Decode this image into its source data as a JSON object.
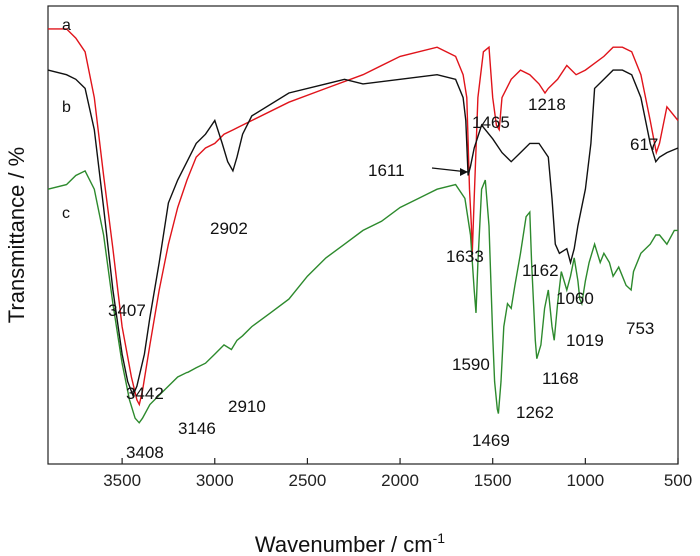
{
  "chart_data": {
    "type": "line",
    "xlabel": "Wavenumber / cm",
    "xlabel_sup": "-1",
    "ylabel": "Transmittance / %",
    "xlim": [
      3900,
      500
    ],
    "x_reversed": true,
    "x_ticks": [
      3500,
      3000,
      2500,
      2000,
      1500,
      1000,
      500
    ],
    "y_ticks_shown": false,
    "grid": false,
    "series": [
      {
        "name": "a",
        "color": "#e0141b",
        "points": [
          [
            3900,
            95
          ],
          [
            3800,
            95
          ],
          [
            3750,
            93
          ],
          [
            3700,
            90
          ],
          [
            3650,
            80
          ],
          [
            3600,
            63
          ],
          [
            3550,
            47
          ],
          [
            3500,
            30
          ],
          [
            3450,
            19
          ],
          [
            3420,
            14
          ],
          [
            3407,
            13
          ],
          [
            3390,
            16
          ],
          [
            3350,
            26
          ],
          [
            3300,
            38
          ],
          [
            3250,
            48
          ],
          [
            3200,
            56
          ],
          [
            3150,
            62
          ],
          [
            3100,
            67
          ],
          [
            3050,
            69
          ],
          [
            3000,
            70
          ],
          [
            2950,
            72
          ],
          [
            2900,
            73
          ],
          [
            2800,
            75
          ],
          [
            2600,
            79
          ],
          [
            2400,
            82
          ],
          [
            2200,
            85
          ],
          [
            2000,
            89
          ],
          [
            1800,
            91
          ],
          [
            1700,
            89
          ],
          [
            1660,
            85
          ],
          [
            1640,
            80
          ],
          [
            1625,
            60
          ],
          [
            1615,
            52
          ],
          [
            1611,
            45
          ],
          [
            1600,
            58
          ],
          [
            1580,
            80
          ],
          [
            1550,
            90
          ],
          [
            1520,
            91
          ],
          [
            1500,
            80
          ],
          [
            1480,
            74
          ],
          [
            1465,
            73
          ],
          [
            1450,
            80
          ],
          [
            1400,
            84
          ],
          [
            1350,
            86
          ],
          [
            1300,
            85
          ],
          [
            1250,
            83
          ],
          [
            1218,
            81
          ],
          [
            1200,
            82
          ],
          [
            1150,
            84
          ],
          [
            1100,
            87
          ],
          [
            1050,
            85
          ],
          [
            1000,
            86
          ],
          [
            900,
            89
          ],
          [
            850,
            91
          ],
          [
            800,
            91
          ],
          [
            750,
            90
          ],
          [
            700,
            85
          ],
          [
            650,
            75
          ],
          [
            617,
            68
          ],
          [
            600,
            70
          ],
          [
            560,
            78
          ],
          [
            500,
            75
          ]
        ]
      },
      {
        "name": "b",
        "color": "#111111",
        "points": [
          [
            3900,
            86
          ],
          [
            3800,
            85
          ],
          [
            3750,
            84
          ],
          [
            3700,
            82
          ],
          [
            3650,
            73
          ],
          [
            3600,
            56
          ],
          [
            3550,
            38
          ],
          [
            3500,
            24
          ],
          [
            3470,
            18
          ],
          [
            3442,
            15
          ],
          [
            3420,
            17
          ],
          [
            3380,
            24
          ],
          [
            3350,
            32
          ],
          [
            3300,
            44
          ],
          [
            3250,
            57
          ],
          [
            3200,
            62
          ],
          [
            3150,
            66
          ],
          [
            3100,
            70
          ],
          [
            3050,
            72
          ],
          [
            3000,
            75
          ],
          [
            2960,
            70
          ],
          [
            2930,
            66
          ],
          [
            2902,
            64
          ],
          [
            2880,
            67
          ],
          [
            2850,
            72
          ],
          [
            2800,
            76
          ],
          [
            2600,
            81
          ],
          [
            2400,
            83
          ],
          [
            2300,
            84
          ],
          [
            2200,
            83
          ],
          [
            2000,
            84
          ],
          [
            1800,
            85
          ],
          [
            1700,
            84
          ],
          [
            1660,
            80
          ],
          [
            1645,
            75
          ],
          [
            1633,
            63
          ],
          [
            1620,
            65
          ],
          [
            1600,
            69
          ],
          [
            1560,
            74
          ],
          [
            1500,
            71
          ],
          [
            1450,
            68
          ],
          [
            1400,
            66
          ],
          [
            1350,
            68
          ],
          [
            1300,
            70
          ],
          [
            1250,
            70
          ],
          [
            1200,
            67
          ],
          [
            1180,
            58
          ],
          [
            1162,
            48
          ],
          [
            1140,
            46
          ],
          [
            1100,
            47
          ],
          [
            1080,
            44
          ],
          [
            1060,
            47
          ],
          [
            1040,
            52
          ],
          [
            1000,
            60
          ],
          [
            970,
            70
          ],
          [
            950,
            82
          ],
          [
            900,
            84
          ],
          [
            850,
            86
          ],
          [
            800,
            86
          ],
          [
            750,
            85
          ],
          [
            700,
            80
          ],
          [
            650,
            70
          ],
          [
            620,
            66
          ],
          [
            600,
            67
          ],
          [
            560,
            68
          ],
          [
            500,
            69
          ]
        ]
      },
      {
        "name": "c",
        "color": "#2d8a2d",
        "points": [
          [
            3900,
            60
          ],
          [
            3800,
            61
          ],
          [
            3750,
            63
          ],
          [
            3700,
            64
          ],
          [
            3650,
            60
          ],
          [
            3600,
            50
          ],
          [
            3550,
            35
          ],
          [
            3500,
            22
          ],
          [
            3460,
            14
          ],
          [
            3430,
            10
          ],
          [
            3408,
            9
          ],
          [
            3390,
            10
          ],
          [
            3350,
            13
          ],
          [
            3300,
            15
          ],
          [
            3250,
            17
          ],
          [
            3200,
            19
          ],
          [
            3150,
            20
          ],
          [
            3146,
            20
          ],
          [
            3100,
            21
          ],
          [
            3050,
            22
          ],
          [
            3000,
            24
          ],
          [
            2950,
            26
          ],
          [
            2910,
            25
          ],
          [
            2880,
            27
          ],
          [
            2850,
            28
          ],
          [
            2800,
            30
          ],
          [
            2700,
            33
          ],
          [
            2600,
            36
          ],
          [
            2500,
            41
          ],
          [
            2400,
            45
          ],
          [
            2300,
            48
          ],
          [
            2200,
            51
          ],
          [
            2100,
            53
          ],
          [
            2000,
            56
          ],
          [
            1900,
            58
          ],
          [
            1850,
            59
          ],
          [
            1800,
            60
          ],
          [
            1700,
            61
          ],
          [
            1650,
            58
          ],
          [
            1620,
            50
          ],
          [
            1600,
            38
          ],
          [
            1590,
            33
          ],
          [
            1580,
            44
          ],
          [
            1560,
            60
          ],
          [
            1540,
            62
          ],
          [
            1520,
            52
          ],
          [
            1500,
            28
          ],
          [
            1490,
            18
          ],
          [
            1475,
            12
          ],
          [
            1469,
            11
          ],
          [
            1455,
            18
          ],
          [
            1440,
            30
          ],
          [
            1420,
            35
          ],
          [
            1400,
            34
          ],
          [
            1380,
            39
          ],
          [
            1350,
            46
          ],
          [
            1320,
            54
          ],
          [
            1300,
            55
          ],
          [
            1290,
            44
          ],
          [
            1270,
            27
          ],
          [
            1262,
            23
          ],
          [
            1240,
            26
          ],
          [
            1220,
            34
          ],
          [
            1200,
            38
          ],
          [
            1180,
            30
          ],
          [
            1168,
            27
          ],
          [
            1150,
            35
          ],
          [
            1130,
            42
          ],
          [
            1100,
            38
          ],
          [
            1080,
            41
          ],
          [
            1060,
            45
          ],
          [
            1040,
            40
          ],
          [
            1030,
            36
          ],
          [
            1019,
            35
          ],
          [
            1000,
            40
          ],
          [
            980,
            44
          ],
          [
            950,
            48
          ],
          [
            920,
            44
          ],
          [
            900,
            46
          ],
          [
            870,
            44
          ],
          [
            850,
            41
          ],
          [
            820,
            43
          ],
          [
            800,
            41
          ],
          [
            780,
            39
          ],
          [
            753,
            38
          ],
          [
            740,
            42
          ],
          [
            700,
            46
          ],
          [
            650,
            48
          ],
          [
            620,
            50
          ],
          [
            600,
            50
          ],
          [
            560,
            48
          ],
          [
            520,
            51
          ],
          [
            500,
            51
          ]
        ]
      }
    ],
    "series_letters": [
      "a",
      "b",
      "c"
    ],
    "peak_labels": [
      {
        "text": "3407",
        "x": 3407
      },
      {
        "text": "3442",
        "x": 3442
      },
      {
        "text": "3408",
        "x": 3408
      },
      {
        "text": "2902",
        "x": 2902
      },
      {
        "text": "3146",
        "x": 3146
      },
      {
        "text": "2910",
        "x": 2910
      },
      {
        "text": "1611",
        "x": 1611
      },
      {
        "text": "1633",
        "x": 1633
      },
      {
        "text": "1465",
        "x": 1465
      },
      {
        "text": "1218",
        "x": 1218
      },
      {
        "text": "617",
        "x": 617
      },
      {
        "text": "1162",
        "x": 1162
      },
      {
        "text": "1060",
        "x": 1060
      },
      {
        "text": "1019",
        "x": 1019
      },
      {
        "text": "753",
        "x": 753
      },
      {
        "text": "1590",
        "x": 1590
      },
      {
        "text": "1168",
        "x": 1168
      },
      {
        "text": "1262",
        "x": 1262
      },
      {
        "text": "1469",
        "x": 1469
      }
    ]
  }
}
